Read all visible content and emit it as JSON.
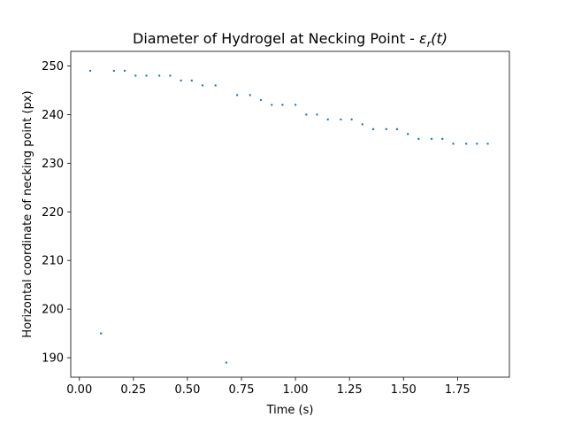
{
  "chart_data": {
    "type": "scatter",
    "title_main": "Diameter of Hydrogel at Necking Point - ",
    "title_math": "εr(t)",
    "xlabel": "Time (s)",
    "ylabel": "Horizontal coordinate of necking point (px)",
    "xlim": [
      -0.04,
      1.99
    ],
    "ylim": [
      186,
      253
    ],
    "xticks": [
      0.0,
      0.25,
      0.5,
      0.75,
      1.0,
      1.25,
      1.5,
      1.75
    ],
    "xtick_labels": [
      "0.00",
      "0.25",
      "0.50",
      "0.75",
      "1.00",
      "1.25",
      "1.50",
      "1.75"
    ],
    "yticks": [
      190,
      200,
      210,
      220,
      230,
      240,
      250
    ],
    "ytick_labels": [
      "190",
      "200",
      "210",
      "220",
      "230",
      "240",
      "250"
    ],
    "grid": false,
    "marker_color": "#1f77b4",
    "series": [
      {
        "x": [
          0.05,
          0.1,
          0.16,
          0.21,
          0.26,
          0.31,
          0.37,
          0.42,
          0.47,
          0.52,
          0.57,
          0.63,
          0.68,
          0.73,
          0.79,
          0.84,
          0.89,
          0.94,
          1.0,
          1.05,
          1.1,
          1.15,
          1.21,
          1.26,
          1.31,
          1.36,
          1.42,
          1.47,
          1.52,
          1.57,
          1.63,
          1.68,
          1.73,
          1.79,
          1.84,
          1.89
        ],
        "y": [
          249,
          195,
          249,
          249,
          248,
          248,
          248,
          248,
          247,
          247,
          246,
          246,
          189,
          244,
          244,
          243,
          242,
          242,
          242,
          240,
          240,
          239,
          239,
          239,
          238,
          237,
          237,
          237,
          236,
          235,
          235,
          235,
          234,
          234,
          234,
          234
        ]
      }
    ]
  }
}
